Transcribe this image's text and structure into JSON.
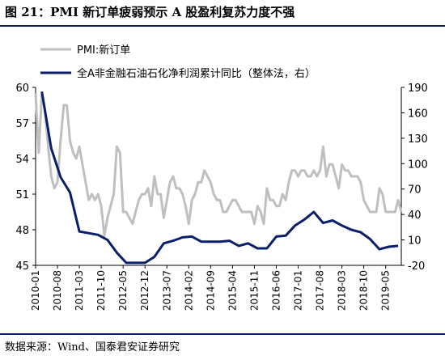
{
  "header": {
    "title": "图 21：PMI 新订单疲弱预示 A 股盈利复苏力度不强"
  },
  "footer": {
    "source": "数据来源：Wind、国泰君安证券研究"
  },
  "chart_data": {
    "type": "line",
    "x_tick_labels": [
      "2010-01",
      "2010-08",
      "2011-03",
      "2011-10",
      "2012-05",
      "2012-12",
      "2013-07",
      "2014-02",
      "2014-09",
      "2015-04",
      "2015-11",
      "2016-06",
      "2017-01",
      "2017-08",
      "2018-03",
      "2018-10",
      "2019-05"
    ],
    "x_range": [
      "2010-01",
      "2019-10"
    ],
    "left_axis": {
      "ticks": [
        45,
        48,
        51,
        54,
        57,
        60
      ],
      "range": [
        45,
        60
      ]
    },
    "right_axis": {
      "ticks": [
        -20,
        10,
        40,
        70,
        100,
        130,
        160,
        190
      ],
      "range": [
        -20,
        190
      ]
    },
    "legend_position": "top-left",
    "grid": false,
    "series": [
      {
        "name": "PMI:新订单",
        "axis": "left",
        "color": "#bfbfbf",
        "points": [
          [
            "2010-01",
            59.5
          ],
          [
            "2010-02",
            54.5
          ],
          [
            "2010-03",
            59.5
          ],
          [
            "2010-04",
            58.0
          ],
          [
            "2010-05",
            55.0
          ],
          [
            "2010-06",
            52.5
          ],
          [
            "2010-07",
            51.5
          ],
          [
            "2010-08",
            52.0
          ],
          [
            "2010-09",
            55.5
          ],
          [
            "2010-10",
            58.5
          ],
          [
            "2010-11",
            58.5
          ],
          [
            "2010-12",
            55.5
          ],
          [
            "2011-01",
            54.5
          ],
          [
            "2011-02",
            54.0
          ],
          [
            "2011-03",
            55.0
          ],
          [
            "2011-04",
            53.5
          ],
          [
            "2011-05",
            52.0
          ],
          [
            "2011-06",
            50.5
          ],
          [
            "2011-07",
            51.0
          ],
          [
            "2011-08",
            50.5
          ],
          [
            "2011-09",
            51.0
          ],
          [
            "2011-10",
            50.0
          ],
          [
            "2011-11",
            47.5
          ],
          [
            "2011-12",
            49.0
          ],
          [
            "2012-01",
            50.0
          ],
          [
            "2012-02",
            51.0
          ],
          [
            "2012-03",
            55.0
          ],
          [
            "2012-04",
            54.5
          ],
          [
            "2012-05",
            49.5
          ],
          [
            "2012-06",
            49.5
          ],
          [
            "2012-07",
            49.0
          ],
          [
            "2012-08",
            48.5
          ],
          [
            "2012-09",
            49.5
          ],
          [
            "2012-10",
            50.5
          ],
          [
            "2012-11",
            51.0
          ],
          [
            "2012-12",
            51.0
          ],
          [
            "2013-01",
            51.5
          ],
          [
            "2013-02",
            50.0
          ],
          [
            "2013-03",
            52.5
          ],
          [
            "2013-04",
            51.0
          ],
          [
            "2013-05",
            51.0
          ],
          [
            "2013-06",
            49.0
          ],
          [
            "2013-07",
            50.5
          ],
          [
            "2013-08",
            52.0
          ],
          [
            "2013-09",
            52.5
          ],
          [
            "2013-10",
            51.5
          ],
          [
            "2013-11",
            51.5
          ],
          [
            "2013-12",
            51.0
          ],
          [
            "2014-01",
            50.0
          ],
          [
            "2014-02",
            48.5
          ],
          [
            "2014-03",
            50.5
          ],
          [
            "2014-04",
            51.0
          ],
          [
            "2014-05",
            52.0
          ],
          [
            "2014-06",
            52.0
          ],
          [
            "2014-07",
            53.0
          ],
          [
            "2014-08",
            52.5
          ],
          [
            "2014-09",
            52.0
          ],
          [
            "2014-10",
            51.0
          ],
          [
            "2014-11",
            50.5
          ],
          [
            "2014-12",
            50.5
          ],
          [
            "2015-01",
            49.5
          ],
          [
            "2015-02",
            49.5
          ],
          [
            "2015-03",
            50.0
          ],
          [
            "2015-04",
            50.5
          ],
          [
            "2015-05",
            50.5
          ],
          [
            "2015-06",
            50.0
          ],
          [
            "2015-07",
            49.5
          ],
          [
            "2015-08",
            49.5
          ],
          [
            "2015-09",
            49.5
          ],
          [
            "2015-10",
            49.5
          ],
          [
            "2015-11",
            48.5
          ],
          [
            "2015-12",
            50.0
          ],
          [
            "2016-01",
            49.5
          ],
          [
            "2016-02",
            48.5
          ],
          [
            "2016-03",
            51.5
          ],
          [
            "2016-04",
            50.5
          ],
          [
            "2016-05",
            50.5
          ],
          [
            "2016-06",
            50.0
          ],
          [
            "2016-07",
            50.0
          ],
          [
            "2016-08",
            51.0
          ],
          [
            "2016-09",
            50.5
          ],
          [
            "2016-10",
            52.0
          ],
          [
            "2016-11",
            53.0
          ],
          [
            "2016-12",
            53.0
          ],
          [
            "2017-01",
            52.5
          ],
          [
            "2017-02",
            53.0
          ],
          [
            "2017-03",
            53.0
          ],
          [
            "2017-04",
            52.5
          ],
          [
            "2017-05",
            52.5
          ],
          [
            "2017-06",
            53.0
          ],
          [
            "2017-07",
            52.5
          ],
          [
            "2017-08",
            53.0
          ],
          [
            "2017-09",
            55.0
          ],
          [
            "2017-10",
            52.5
          ],
          [
            "2017-11",
            53.5
          ],
          [
            "2017-12",
            53.5
          ],
          [
            "2018-01",
            52.5
          ],
          [
            "2018-02",
            51.5
          ],
          [
            "2018-03",
            53.5
          ],
          [
            "2018-04",
            53.0
          ],
          [
            "2018-05",
            53.0
          ],
          [
            "2018-06",
            52.5
          ],
          [
            "2018-07",
            52.5
          ],
          [
            "2018-08",
            52.5
          ],
          [
            "2018-09",
            52.0
          ],
          [
            "2018-10",
            50.5
          ],
          [
            "2018-11",
            50.0
          ],
          [
            "2018-12",
            49.5
          ],
          [
            "2019-01",
            49.5
          ],
          [
            "2019-02",
            49.5
          ],
          [
            "2019-03",
            51.5
          ],
          [
            "2019-04",
            51.0
          ],
          [
            "2019-05",
            49.5
          ],
          [
            "2019-06",
            49.5
          ],
          [
            "2019-07",
            49.5
          ],
          [
            "2019-08",
            49.5
          ],
          [
            "2019-09",
            50.5
          ],
          [
            "2019-10",
            49.5
          ]
        ]
      },
      {
        "name": "全A非金融石油石化净利润累计同比（整体法，右）",
        "axis": "right",
        "color": "#0a1f6b",
        "points": [
          [
            "2010-03",
            185
          ],
          [
            "2010-06",
            118
          ],
          [
            "2010-09",
            84
          ],
          [
            "2010-12",
            66
          ],
          [
            "2011-03",
            20
          ],
          [
            "2011-06",
            18
          ],
          [
            "2011-09",
            16
          ],
          [
            "2011-12",
            10
          ],
          [
            "2012-03",
            -5
          ],
          [
            "2012-06",
            -17
          ],
          [
            "2012-09",
            -17
          ],
          [
            "2012-12",
            -17
          ],
          [
            "2013-03",
            -10
          ],
          [
            "2013-06",
            6
          ],
          [
            "2013-09",
            9
          ],
          [
            "2013-12",
            13
          ],
          [
            "2014-03",
            14
          ],
          [
            "2014-06",
            8
          ],
          [
            "2014-09",
            8
          ],
          [
            "2014-12",
            8
          ],
          [
            "2015-03",
            9
          ],
          [
            "2015-06",
            3
          ],
          [
            "2015-09",
            6
          ],
          [
            "2015-12",
            0
          ],
          [
            "2016-03",
            0
          ],
          [
            "2016-06",
            14
          ],
          [
            "2016-09",
            15
          ],
          [
            "2016-12",
            27
          ],
          [
            "2017-03",
            34
          ],
          [
            "2017-06",
            43
          ],
          [
            "2017-09",
            30
          ],
          [
            "2017-12",
            33
          ],
          [
            "2018-03",
            27
          ],
          [
            "2018-06",
            22
          ],
          [
            "2018-09",
            19
          ],
          [
            "2018-12",
            11
          ],
          [
            "2019-03",
            -1
          ],
          [
            "2019-06",
            2
          ],
          [
            "2019-09",
            3
          ]
        ]
      }
    ]
  }
}
